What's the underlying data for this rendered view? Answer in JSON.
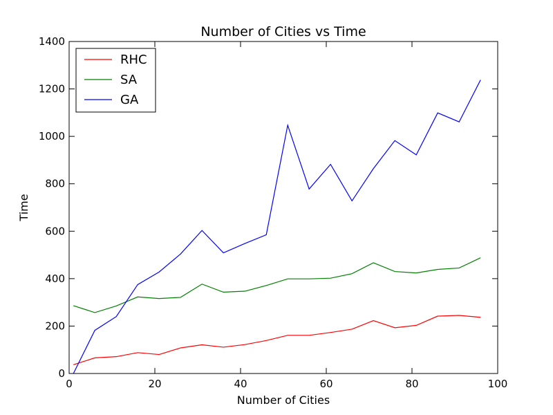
{
  "chart_data": {
    "type": "line",
    "title": "Number of Cities vs Time",
    "xlabel": "Number of Cities",
    "ylabel": "Time",
    "xlim": [
      0,
      100
    ],
    "ylim": [
      0,
      1400
    ],
    "xticks": [
      0,
      20,
      40,
      60,
      80,
      100
    ],
    "yticks": [
      0,
      200,
      400,
      600,
      800,
      1000,
      1200,
      1400
    ],
    "grid": false,
    "legend_position": "top-left",
    "x": [
      1,
      6,
      11,
      16,
      21,
      26,
      31,
      36,
      41,
      46,
      51,
      56,
      61,
      66,
      71,
      76,
      81,
      86,
      91,
      96
    ],
    "series": [
      {
        "name": "RHC",
        "color": "#ff0000",
        "values": [
          37,
          66,
          71,
          88,
          80,
          108,
          121,
          111,
          122,
          139,
          161,
          161,
          173,
          187,
          223,
          193,
          203,
          242,
          245,
          237
        ]
      },
      {
        "name": "SA",
        "color": "#008000",
        "values": [
          286,
          257,
          285,
          323,
          316,
          321,
          377,
          343,
          347,
          371,
          399,
          399,
          402,
          421,
          467,
          430,
          424,
          439,
          445,
          488
        ]
      },
      {
        "name": "GA",
        "color": "#0000ff",
        "values": [
          0,
          182,
          240,
          375,
          428,
          504,
          603,
          509,
          548,
          585,
          1047,
          778,
          882,
          728,
          864,
          982,
          922,
          1099,
          1061,
          1238
        ]
      }
    ]
  }
}
